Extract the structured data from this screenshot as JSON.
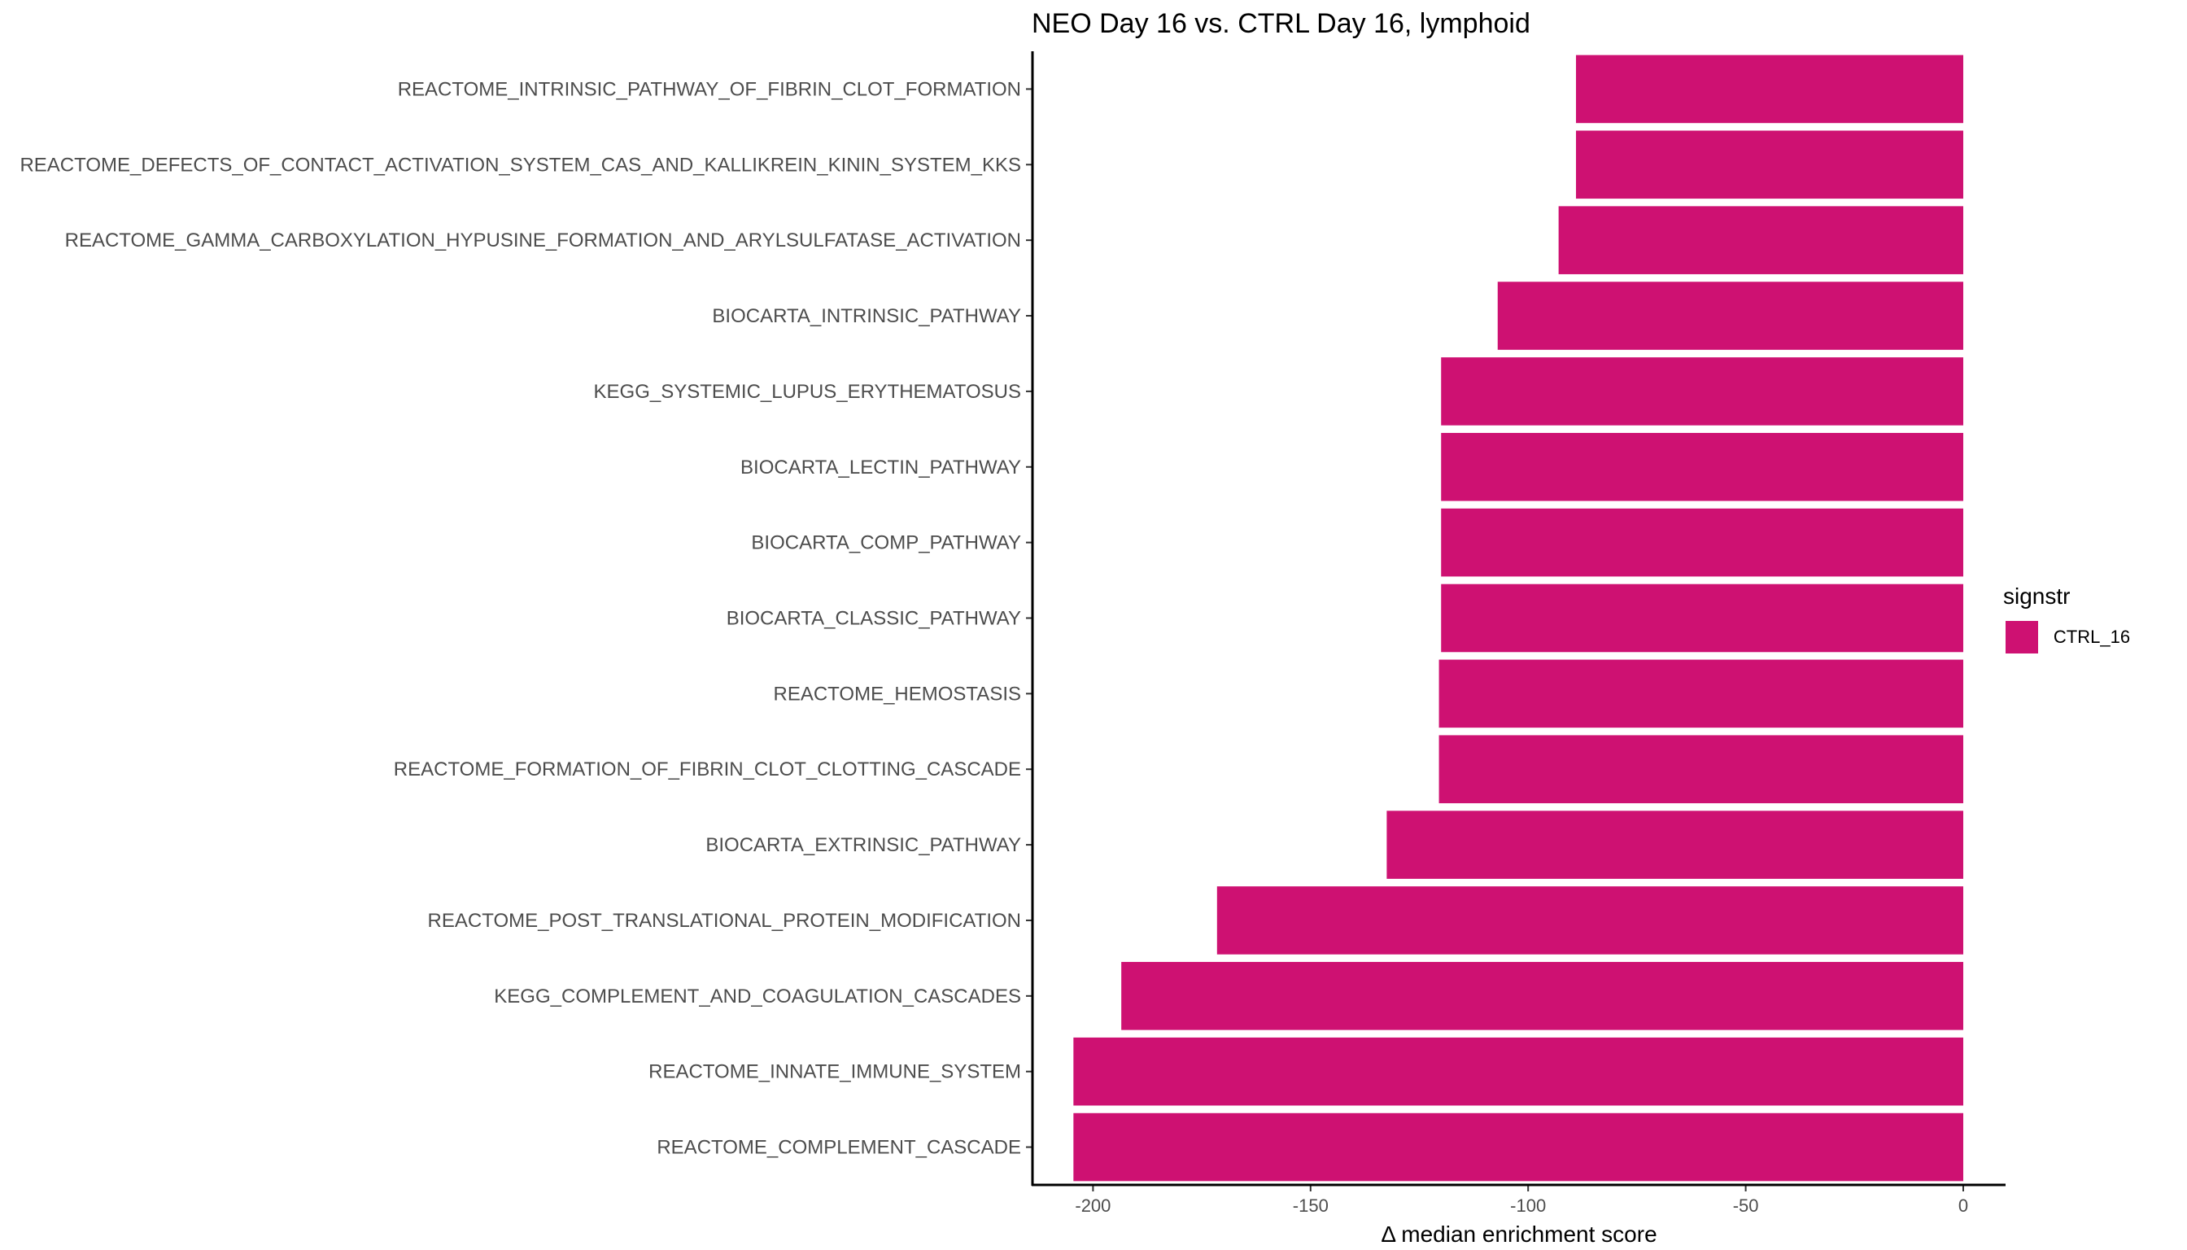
{
  "chart_data": {
    "type": "bar",
    "orientation": "horizontal",
    "title": "NEO Day 16 vs. CTRL Day 16, lymphoid",
    "xlabel": "Δ median enrichment score",
    "ylabel": "",
    "xlim": [
      -214,
      10
    ],
    "xticks": [
      -200,
      -150,
      -100,
      -50,
      0
    ],
    "grid": false,
    "legend": {
      "title": "signstr",
      "position": "right",
      "entries": [
        {
          "label": "CTRL_16",
          "color": "#CE1172"
        }
      ]
    },
    "series": [
      {
        "name": "CTRL_16",
        "color": "#CE1172"
      }
    ],
    "categories": [
      "REACTOME_INTRINSIC_PATHWAY_OF_FIBRIN_CLOT_FORMATION",
      "REACTOME_DEFECTS_OF_CONTACT_ACTIVATION_SYSTEM_CAS_AND_KALLIKREIN_KININ_SYSTEM_KKS",
      "REACTOME_GAMMA_CARBOXYLATION_HYPUSINE_FORMATION_AND_ARYLSULFATASE_ACTIVATION",
      "BIOCARTA_INTRINSIC_PATHWAY",
      "KEGG_SYSTEMIC_LUPUS_ERYTHEMATOSUS",
      "BIOCARTA_LECTIN_PATHWAY",
      "BIOCARTA_COMP_PATHWAY",
      "BIOCARTA_CLASSIC_PATHWAY",
      "REACTOME_HEMOSTASIS",
      "REACTOME_FORMATION_OF_FIBRIN_CLOT_CLOTTING_CASCADE",
      "BIOCARTA_EXTRINSIC_PATHWAY",
      "REACTOME_POST_TRANSLATIONAL_PROTEIN_MODIFICATION",
      "KEGG_COMPLEMENT_AND_COAGULATION_CASCADES",
      "REACTOME_INNATE_IMMUNE_SYSTEM",
      "REACTOME_COMPLEMENT_CASCADE"
    ],
    "values": [
      -89,
      -89,
      -93,
      -107,
      -120,
      -120,
      -120,
      -120,
      -120.5,
      -120.5,
      -132.5,
      -171.5,
      -193.5,
      -204.5,
      -204.5
    ]
  }
}
